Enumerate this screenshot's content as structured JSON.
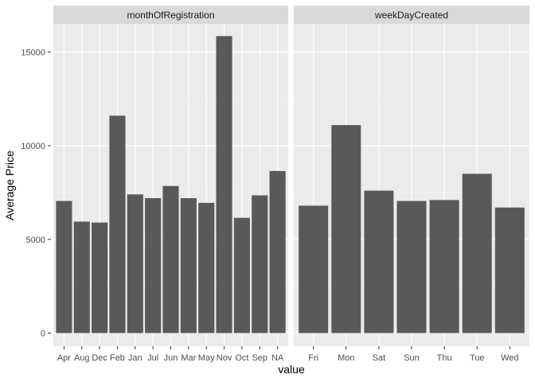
{
  "chart_data": {
    "type": "bar",
    "xlabel": "value",
    "ylabel": "Average Price",
    "ylim": [
      -700,
      16500
    ],
    "yticks": [
      0,
      5000,
      10000,
      15000
    ],
    "ytick_labels": [
      "0",
      "5000",
      "10000",
      "15000"
    ],
    "grid": true,
    "colors": {
      "bar": "#595959",
      "panel_bg": "#ebebeb",
      "strip_bg": "#d9d9d9",
      "grid_major": "#ffffff",
      "grid_minor": "#f5f5f5"
    },
    "facets": [
      {
        "strip": "monthOfRegistration",
        "categories": [
          "Apr",
          "Aug",
          "Dec",
          "Feb",
          "Jan",
          "Jul",
          "Jun",
          "Mar",
          "May",
          "Nov",
          "Oct",
          "Sep",
          "NA"
        ],
        "values": [
          7050,
          5950,
          5900,
          11600,
          7400,
          7200,
          7850,
          7200,
          6950,
          15850,
          6150,
          7350,
          8650
        ]
      },
      {
        "strip": "weekDayCreated",
        "categories": [
          "Fri",
          "Mon",
          "Sat",
          "Sun",
          "Thu",
          "Tue",
          "Wed"
        ],
        "values": [
          6800,
          11100,
          7600,
          7050,
          7100,
          8500,
          6700
        ]
      }
    ]
  }
}
